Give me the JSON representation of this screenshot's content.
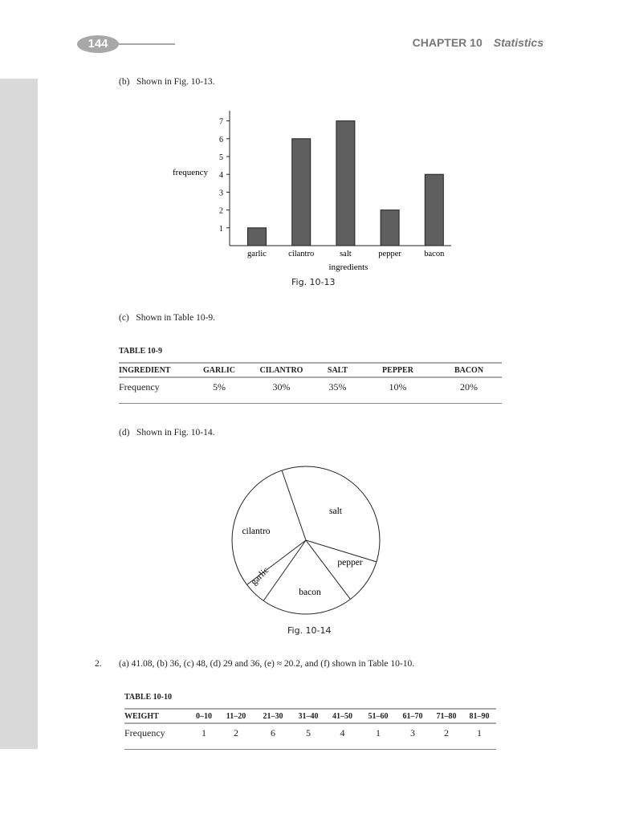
{
  "header": {
    "page_number": "144",
    "chapter": "CHAPTER 10",
    "chapter_title": "Statistics"
  },
  "part_b": "(b)   Shown in Fig. 10-13.",
  "part_c": "(c)   Shown in Table 10-9.",
  "part_d": "(d)   Shown in Fig. 10-14.",
  "answer_2": {
    "num": "2.",
    "text": "(a) 41.08, (b) 36, (c) 48, (d) 29 and 36, (e) ≈ 20.2, and (f) shown in Table 10-10."
  },
  "table_10_9": {
    "title": "TABLE 10-9",
    "headers": [
      "INGREDIENT",
      "GARLIC",
      "CILANTRO",
      "SALT",
      "PEPPER",
      "BACON"
    ],
    "row": [
      "Frequency",
      "5%",
      "30%",
      "35%",
      "10%",
      "20%"
    ]
  },
  "table_10_10": {
    "title": "TABLE 10-10",
    "headers": [
      "WEIGHT",
      "0–10",
      "11–20",
      "21–30",
      "31–40",
      "41–50",
      "51–60",
      "61–70",
      "71–80",
      "81–90"
    ],
    "row": [
      "Frequency",
      "1",
      "2",
      "6",
      "5",
      "4",
      "1",
      "3",
      "2",
      "1"
    ]
  },
  "chart_data": [
    {
      "type": "bar",
      "caption": "Fig. 10-13",
      "categories": [
        "garlic",
        "cilantro",
        "salt",
        "pepper",
        "bacon"
      ],
      "values": [
        1,
        6,
        7,
        2,
        4
      ],
      "xlabel": "ingredients",
      "ylabel": "frequency",
      "yticks": [
        1,
        2,
        3,
        4,
        5,
        6,
        7
      ],
      "ylim": [
        0,
        7.5
      ],
      "bar_color": "#5f5f5f",
      "grid": false
    },
    {
      "type": "pie",
      "caption": "Fig. 10-14",
      "categories": [
        "salt",
        "pepper",
        "bacon",
        "garlic",
        "cilantro"
      ],
      "values": [
        35,
        10,
        20,
        5,
        30
      ],
      "fill": "#ffffff"
    }
  ]
}
